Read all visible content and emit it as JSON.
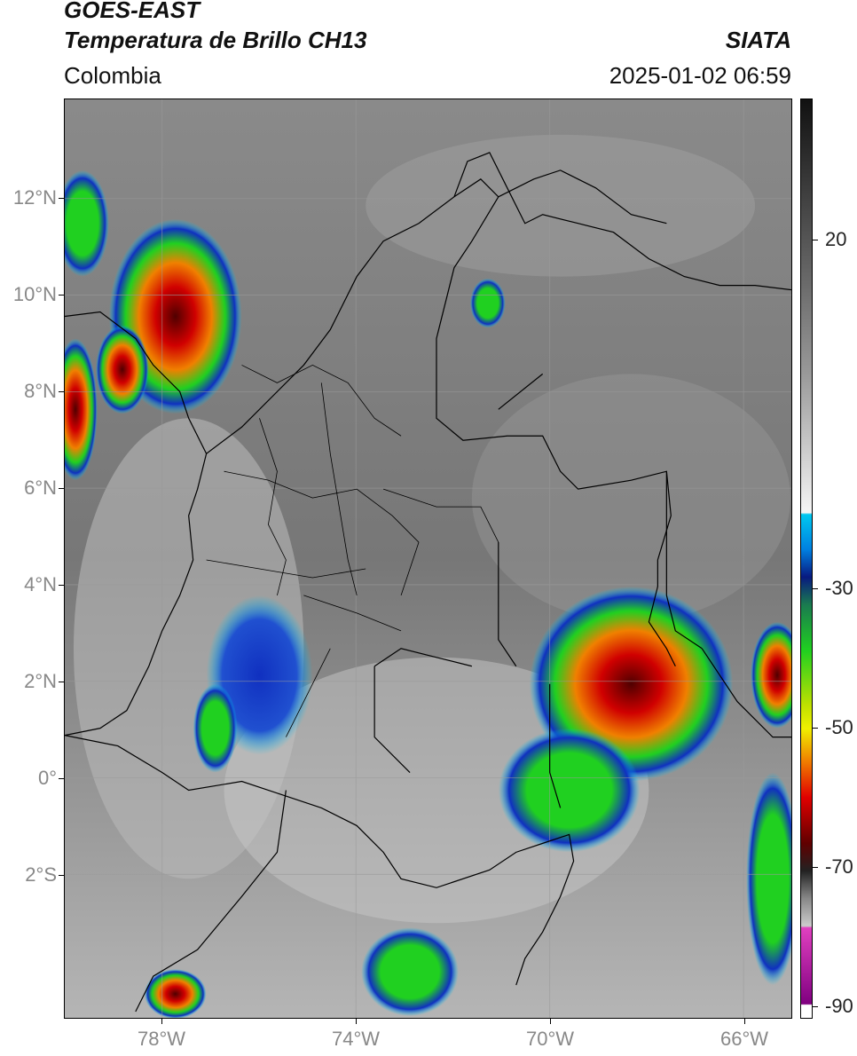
{
  "header": {
    "title_line1": "GOES-EAST",
    "title_line2": "Temperatura de Brillo CH13",
    "organization": "SIATA",
    "region": "Colombia",
    "datetime": "2025-01-02 06:59"
  },
  "map": {
    "lat_labels": [
      "12°N",
      "10°N",
      "8°N",
      "6°N",
      "4°N",
      "2°N",
      "0°",
      "2°S"
    ],
    "lon_labels": [
      "78°W",
      "74°W",
      "70°W",
      "66°W"
    ],
    "gridlines": true
  },
  "colorbar": {
    "tick_labels": [
      "20",
      "-30",
      "-50",
      "-70",
      "-90"
    ],
    "colors": {
      "gray_top": "#111111",
      "gray_bottom": "#f5f5f5",
      "cyan": "#00c8f0",
      "blue": "#1030c0",
      "navy": "#081a80",
      "green": "#20d020",
      "yellow": "#f0f000",
      "orange": "#f08000",
      "red": "#e00000",
      "darkred": "#600000",
      "magenta": "#e040c0",
      "purple": "#800080"
    }
  }
}
